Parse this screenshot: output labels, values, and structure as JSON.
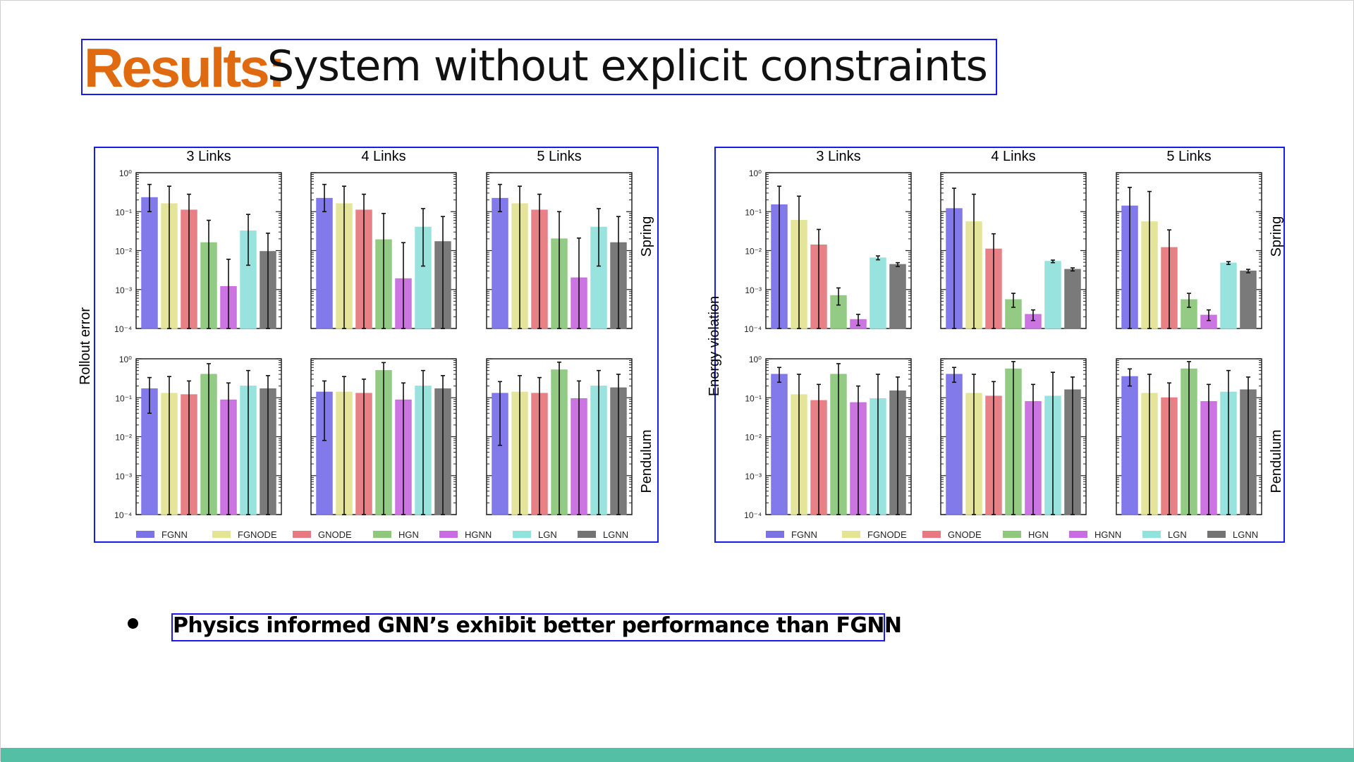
{
  "title": {
    "accent": "Results:",
    "rest": "System without explicit constraints"
  },
  "bullet": {
    "text": "Physics informed GNN’s exhibit better performance than FGNN"
  },
  "colors": {
    "title_accent": "#e06a10",
    "highlight_box": "#1a1aee",
    "footer_bar": "#55bfa5",
    "series": [
      "#7b72ea",
      "#e3e496",
      "#e77a80",
      "#8dc87d",
      "#c86de0",
      "#93e2dd",
      "#737373"
    ]
  },
  "chart_data": [
    {
      "type": "bar",
      "ylabel": "Rollout error",
      "yscale": "log",
      "ylim": [
        0.0001,
        1
      ],
      "yticks": [
        {
          "v": 1,
          "label": "10⁰"
        },
        {
          "v": 0.1,
          "label": "10⁻¹"
        },
        {
          "v": 0.01,
          "label": "10⁻²"
        },
        {
          "v": 0.001,
          "label": "10⁻³"
        },
        {
          "v": 0.0001,
          "label": "10⁻⁴"
        }
      ],
      "columns": [
        "3 Links",
        "4 Links",
        "5 Links"
      ],
      "rows": [
        "Spring",
        "Pendulum"
      ],
      "series": [
        "FGNN",
        "FGNODE",
        "GNODE",
        "HGN",
        "HGNN",
        "LGN",
        "LGNN"
      ],
      "panels": [
        {
          "column": "3 Links",
          "row": "Spring",
          "values": [
            0.23,
            0.16,
            0.11,
            0.016,
            0.0012,
            0.032,
            0.0095
          ],
          "err_low": [
            0.1,
            0.0001,
            0.0001,
            0.0001,
            0.0001,
            0.0042,
            0.0001
          ],
          "err_high": [
            0.5,
            0.45,
            0.28,
            0.06,
            0.006,
            0.085,
            0.028
          ]
        },
        {
          "column": "4 Links",
          "row": "Spring",
          "values": [
            0.22,
            0.16,
            0.11,
            0.019,
            0.0019,
            0.04,
            0.017
          ],
          "err_low": [
            0.1,
            0.0001,
            0.0001,
            0.0001,
            0.0001,
            0.004,
            0.0001
          ],
          "err_high": [
            0.5,
            0.45,
            0.28,
            0.09,
            0.016,
            0.12,
            0.075
          ]
        },
        {
          "column": "5 Links",
          "row": "Spring",
          "values": [
            0.22,
            0.16,
            0.11,
            0.02,
            0.002,
            0.04,
            0.016
          ],
          "err_low": [
            0.1,
            0.0001,
            0.0001,
            0.0001,
            0.0001,
            0.004,
            0.0001
          ],
          "err_high": [
            0.5,
            0.45,
            0.28,
            0.1,
            0.021,
            0.12,
            0.075
          ]
        },
        {
          "column": "3 Links",
          "row": "Pendulum",
          "values": [
            0.17,
            0.13,
            0.12,
            0.4,
            0.088,
            0.2,
            0.17
          ],
          "err_low": [
            0.04,
            0.0001,
            0.0001,
            0.0001,
            0.0001,
            0.0001,
            0.0001
          ],
          "err_high": [
            0.33,
            0.35,
            0.27,
            0.75,
            0.24,
            0.5,
            0.37
          ]
        },
        {
          "column": "4 Links",
          "row": "Pendulum",
          "values": [
            0.14,
            0.14,
            0.13,
            0.5,
            0.088,
            0.2,
            0.17
          ],
          "err_low": [
            0.008,
            0.0001,
            0.0001,
            0.0001,
            0.0001,
            0.0001,
            0.0001
          ],
          "err_high": [
            0.27,
            0.35,
            0.3,
            0.8,
            0.24,
            0.5,
            0.37
          ]
        },
        {
          "column": "5 Links",
          "row": "Pendulum",
          "values": [
            0.13,
            0.14,
            0.13,
            0.52,
            0.095,
            0.2,
            0.18
          ],
          "err_low": [
            0.006,
            0.0001,
            0.0001,
            0.0001,
            0.0001,
            0.0001,
            0.0001
          ],
          "err_high": [
            0.26,
            0.37,
            0.33,
            0.82,
            0.27,
            0.5,
            0.4
          ]
        }
      ]
    },
    {
      "type": "bar",
      "ylabel": "Energy violation",
      "yscale": "log",
      "ylim": [
        0.0001,
        1
      ],
      "yticks": [
        {
          "v": 1,
          "label": "10⁰"
        },
        {
          "v": 0.1,
          "label": "10⁻¹"
        },
        {
          "v": 0.01,
          "label": "10⁻²"
        },
        {
          "v": 0.001,
          "label": "10⁻³"
        },
        {
          "v": 0.0001,
          "label": "10⁻⁴"
        }
      ],
      "columns": [
        "3 Links",
        "4 Links",
        "5 Links"
      ],
      "rows": [
        "Spring",
        "Pendulum"
      ],
      "series": [
        "FGNN",
        "FGNODE",
        "GNODE",
        "HGN",
        "HGNN",
        "LGN",
        "LGNN"
      ],
      "panels": [
        {
          "column": "3 Links",
          "row": "Spring",
          "values": [
            0.15,
            0.06,
            0.014,
            0.0007,
            0.00017,
            0.0065,
            0.0044
          ],
          "err_low": [
            0.0001,
            0.0001,
            0.0001,
            0.0004,
            0.00012,
            0.0058,
            0.0039
          ],
          "err_high": [
            0.45,
            0.25,
            0.035,
            0.0011,
            0.00023,
            0.0073,
            0.0049
          ]
        },
        {
          "column": "4 Links",
          "row": "Spring",
          "values": [
            0.12,
            0.055,
            0.011,
            0.00055,
            0.00023,
            0.0053,
            0.0033
          ],
          "err_low": [
            0.0001,
            0.0001,
            0.0001,
            0.00035,
            0.00016,
            0.0049,
            0.003
          ],
          "err_high": [
            0.4,
            0.28,
            0.027,
            0.0008,
            0.0003,
            0.0057,
            0.0036
          ]
        },
        {
          "column": "5 Links",
          "row": "Spring",
          "values": [
            0.14,
            0.055,
            0.012,
            0.00055,
            0.00022,
            0.0048,
            0.003
          ],
          "err_low": [
            0.0001,
            0.0001,
            0.0001,
            0.00035,
            0.00016,
            0.0044,
            0.0027
          ],
          "err_high": [
            0.42,
            0.33,
            0.034,
            0.0008,
            0.0003,
            0.0052,
            0.0033
          ]
        },
        {
          "column": "3 Links",
          "row": "Pendulum",
          "values": [
            0.4,
            0.12,
            0.085,
            0.4,
            0.075,
            0.095,
            0.15
          ],
          "err_low": [
            0.25,
            0.0001,
            0.0001,
            0.0001,
            0.0001,
            0.0001,
            0.0001
          ],
          "err_high": [
            0.6,
            0.4,
            0.22,
            0.75,
            0.2,
            0.4,
            0.34
          ]
        },
        {
          "column": "4 Links",
          "row": "Pendulum",
          "values": [
            0.4,
            0.13,
            0.11,
            0.55,
            0.08,
            0.11,
            0.16
          ],
          "err_low": [
            0.25,
            0.0001,
            0.0001,
            0.0001,
            0.0001,
            0.0001,
            0.0001
          ],
          "err_high": [
            0.6,
            0.4,
            0.26,
            0.85,
            0.22,
            0.45,
            0.34
          ]
        },
        {
          "column": "5 Links",
          "row": "Pendulum",
          "values": [
            0.35,
            0.13,
            0.1,
            0.55,
            0.08,
            0.14,
            0.16
          ],
          "err_low": [
            0.2,
            0.0001,
            0.0001,
            0.0001,
            0.0001,
            0.0001,
            0.0001
          ],
          "err_high": [
            0.55,
            0.4,
            0.24,
            0.85,
            0.22,
            0.5,
            0.34
          ]
        }
      ]
    }
  ]
}
